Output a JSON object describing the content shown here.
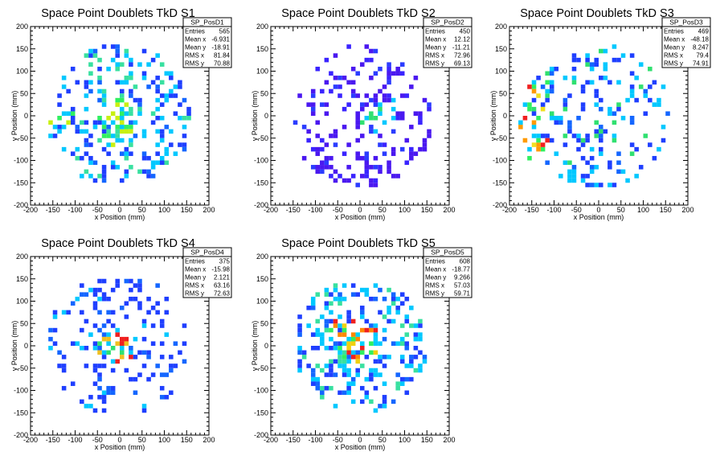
{
  "chart_data": [
    {
      "type": "heatmap",
      "title": "Space Point Doublets TkD S1",
      "xlabel": "x Position (mm)",
      "ylabel": "y Position (mm)",
      "xlim": [
        -200,
        200
      ],
      "ylim": [
        -200,
        200
      ],
      "xticks": [
        "-200",
        "-150",
        "-100",
        "-50",
        "0",
        "50",
        "100",
        "150",
        "200"
      ],
      "yticks": [
        "-200",
        "-150",
        "-100",
        "-50",
        "0",
        "50",
        "100",
        "150",
        "200"
      ],
      "stats": {
        "name": "SP_PosD1",
        "rows": [
          {
            "label": "Entries",
            "value": "565"
          },
          {
            "label": "Mean x",
            "value": "-6.931"
          },
          {
            "label": "Mean y",
            "value": "-18.91"
          },
          {
            "label": "RMS x",
            "value": "81.84"
          },
          {
            "label": "RMS y",
            "value": "70.88"
          }
        ]
      },
      "palette": "mostly blue, some cyan and green, occasional yellow",
      "hotspots": [
        [
          0,
          20
        ],
        [
          -20,
          -20
        ],
        [
          -130,
          -20
        ],
        [
          0,
          -50
        ]
      ],
      "seed": 11,
      "count": 210,
      "rx": 165,
      "ry": 160
    },
    {
      "type": "heatmap",
      "title": "Space Point Doublets TkD S2",
      "xlabel": "x Position (mm)",
      "ylabel": "y Position (mm)",
      "xlim": [
        -200,
        200
      ],
      "ylim": [
        -200,
        200
      ],
      "xticks": [
        "-200",
        "-150",
        "-100",
        "-50",
        "0",
        "50",
        "100",
        "150",
        "200"
      ],
      "yticks": [
        "-200",
        "-150",
        "-100",
        "-50",
        "0",
        "50",
        "100",
        "150",
        "200"
      ],
      "stats": {
        "name": "SP_PosD2",
        "rows": [
          {
            "label": "Entries",
            "value": "450"
          },
          {
            "label": "Mean x",
            "value": "12.12"
          },
          {
            "label": "Mean y",
            "value": "-11.21"
          },
          {
            "label": "RMS x",
            "value": "72.96"
          },
          {
            "label": "RMS y",
            "value": "69.13"
          }
        ]
      },
      "palette": "mostly violet, some blue, rare cyan and green",
      "hotspots": [
        [
          50,
          10
        ],
        [
          20,
          -10
        ]
      ],
      "seed": 23,
      "count": 175,
      "rx": 165,
      "ry": 160
    },
    {
      "type": "heatmap",
      "title": "Space Point Doublets TkD S3",
      "xlabel": "x Position (mm)",
      "ylabel": "y Position (mm)",
      "xlim": [
        -200,
        200
      ],
      "ylim": [
        -200,
        200
      ],
      "xticks": [
        "-200",
        "-150",
        "-100",
        "-50",
        "0",
        "50",
        "100",
        "150",
        "200"
      ],
      "yticks": [
        "-200",
        "-150",
        "-100",
        "-50",
        "0",
        "50",
        "100",
        "150",
        "200"
      ],
      "stats": {
        "name": "SP_PosD3",
        "rows": [
          {
            "label": "Entries",
            "value": "469"
          },
          {
            "label": "Mean x",
            "value": "-48.18"
          },
          {
            "label": "Mean y",
            "value": "8.247"
          },
          {
            "label": "RMS x",
            "value": "79.4"
          },
          {
            "label": "RMS y",
            "value": "74.91"
          }
        ]
      },
      "palette": "blue with cyan and green, yellow and red near the left edge",
      "hotspots": [
        [
          -150,
          0
        ],
        [
          -130,
          60
        ],
        [
          -140,
          -70
        ]
      ],
      "seed": 37,
      "count": 175,
      "rx": 165,
      "ry": 160
    },
    {
      "type": "heatmap",
      "title": "Space Point Doublets TkD S4",
      "xlabel": "x Position (mm)",
      "ylabel": "y Position (mm)",
      "xlim": [
        -200,
        200
      ],
      "ylim": [
        -200,
        200
      ],
      "xticks": [
        "-200",
        "-150",
        "-100",
        "-50",
        "0",
        "50",
        "100",
        "150",
        "200"
      ],
      "yticks": [
        "-200",
        "-150",
        "-100",
        "-50",
        "0",
        "50",
        "100",
        "150",
        "200"
      ],
      "stats": {
        "name": "SP_PosD4",
        "rows": [
          {
            "label": "Entries",
            "value": "375"
          },
          {
            "label": "Mean x",
            "value": "-15.98"
          },
          {
            "label": "Mean y",
            "value": "2.121"
          },
          {
            "label": "RMS x",
            "value": "63.16"
          },
          {
            "label": "RMS y",
            "value": "72.63"
          }
        ]
      },
      "palette": "blue, with cyan, green, yellow and red near the centre",
      "hotspots": [
        [
          0,
          0
        ],
        [
          0,
          20
        ],
        [
          -20,
          -10
        ]
      ],
      "seed": 41,
      "count": 150,
      "rx": 165,
      "ry": 160
    },
    {
      "type": "heatmap",
      "title": "Space Point Doublets TkD S5",
      "xlabel": "x Position (mm)",
      "ylabel": "y Position (mm)",
      "xlim": [
        -200,
        200
      ],
      "ylim": [
        -200,
        200
      ],
      "xticks": [
        "-200",
        "-150",
        "-100",
        "-50",
        "0",
        "50",
        "100",
        "150",
        "200"
      ],
      "yticks": [
        "-200",
        "-150",
        "-100",
        "-50",
        "0",
        "50",
        "100",
        "150",
        "200"
      ],
      "stats": {
        "name": "SP_PosD5",
        "rows": [
          {
            "label": "Entries",
            "value": "608"
          },
          {
            "label": "Mean x",
            "value": "-18.77"
          },
          {
            "label": "Mean y",
            "value": "9.266"
          },
          {
            "label": "RMS x",
            "value": "57.03"
          },
          {
            "label": "RMS y",
            "value": "59.71"
          }
        ]
      },
      "palette": "blue, dense cyan, green, yellow and red at the centre",
      "hotspots": [
        [
          -20,
          10
        ],
        [
          -40,
          30
        ],
        [
          10,
          10
        ],
        [
          -30,
          -10
        ]
      ],
      "seed": 53,
      "count": 220,
      "rx": 150,
      "ry": 150
    }
  ]
}
